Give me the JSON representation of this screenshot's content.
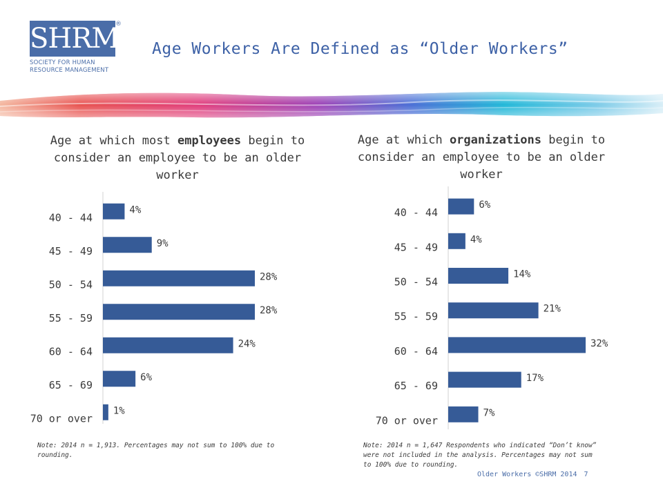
{
  "header": {
    "logo_text": "SHRM",
    "logo_registered": "®",
    "logo_subtitle": [
      "SOCIETY FOR HUMAN",
      "RESOURCE MANAGEMENT"
    ],
    "title": "Age Workers Are Defined as “Older Workers”"
  },
  "colors": {
    "bar": "#365b97",
    "title": "#3d61a6",
    "text": "#3a3a3a"
  },
  "chart_data": [
    {
      "type": "bar",
      "orientation": "horizontal",
      "title": {
        "pre": "Age at which most ",
        "bold": "employees",
        "post": " begin to consider an employee to be an older worker"
      },
      "categories": [
        "40 - 44",
        "45 - 49",
        "50 - 54",
        "55 - 59",
        "60 - 64",
        "65 - 69",
        "70 or over"
      ],
      "values": [
        4,
        9,
        28,
        28,
        24,
        6,
        1
      ],
      "labels": [
        "4%",
        "9%",
        "28%",
        "28%",
        "24%",
        "6%",
        "1%"
      ],
      "xlim": [
        0,
        28
      ],
      "grid": false,
      "legend": "none"
    },
    {
      "type": "bar",
      "orientation": "horizontal",
      "title": {
        "pre": "Age at which ",
        "bold": "organizations",
        "post": " begin to consider an employee to be an older worker"
      },
      "categories": [
        "40 - 44",
        "45 - 49",
        "50 - 54",
        "55 - 59",
        "60 - 64",
        "65 - 69",
        "70 or over"
      ],
      "values": [
        6,
        4,
        14,
        21,
        32,
        17,
        7
      ],
      "labels": [
        "6%",
        "4%",
        "14%",
        "21%",
        "32%",
        "17%",
        "7%"
      ],
      "xlim": [
        0,
        32
      ],
      "grid": false,
      "legend": "none"
    }
  ],
  "notes": {
    "left": "Note: 2014 n = 1,913. Percentages may not sum to 100% due to rounding.",
    "right": "Note: 2014 n = 1,647 Respondents who indicated “Don’t know” were not included in the analysis. Percentages may not sum to 100% due to rounding."
  },
  "footer": {
    "text": "Older Workers ©SHRM 2014",
    "page": "7"
  }
}
